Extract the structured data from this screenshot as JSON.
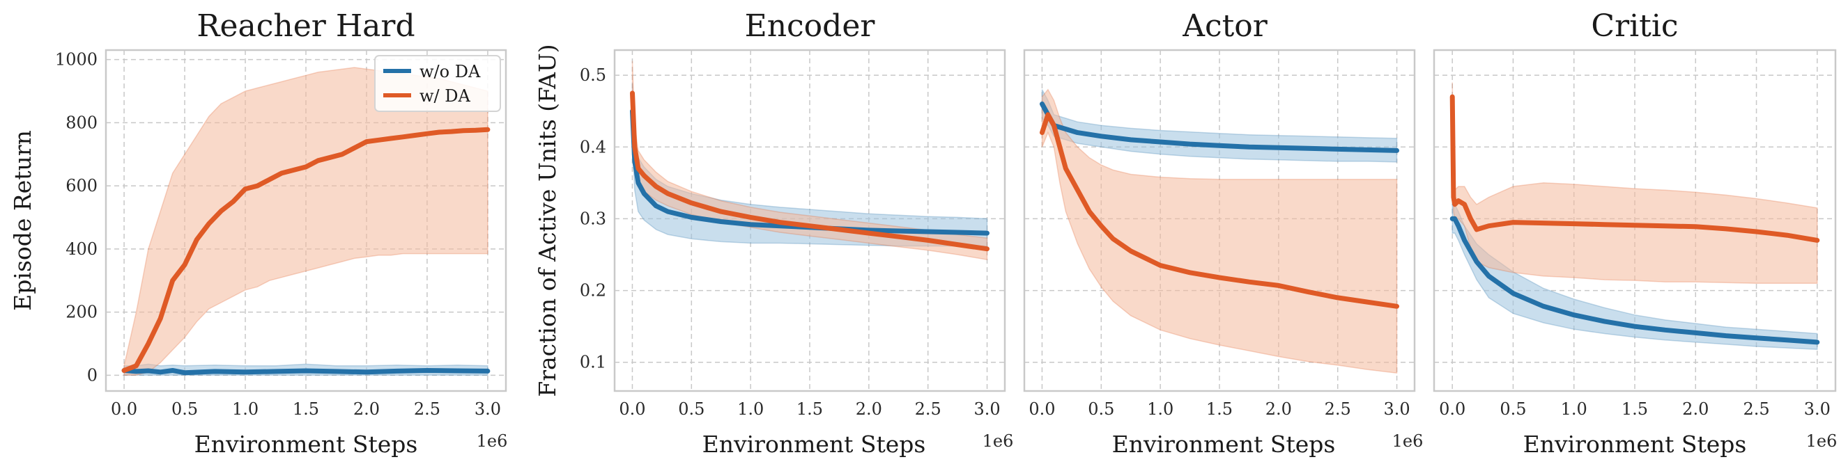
{
  "colors": {
    "without_da": "#2471a8",
    "with_da": "#df5a26",
    "band_without_da": "#9cc3de",
    "band_with_da": "#f4b99c"
  },
  "shared": {
    "xlabel": "Environment Steps",
    "x_scale_label": "1e6"
  },
  "chart_data": [
    {
      "type": "line",
      "title": "Reacher Hard",
      "xlabel": "Environment Steps",
      "ylabel": "Episode Return",
      "xlim": [
        -0.15,
        3.15
      ],
      "ylim": [
        -50,
        1030
      ],
      "xticks": [
        0.0,
        0.5,
        1.0,
        1.5,
        2.0,
        2.5,
        3.0
      ],
      "xtick_labels": [
        "0.0",
        "0.5",
        "1.0",
        "1.5",
        "2.0",
        "2.5",
        "3.0"
      ],
      "yticks": [
        0,
        200,
        400,
        600,
        800,
        1000
      ],
      "ytick_labels": [
        "0",
        "200",
        "400",
        "600",
        "800",
        "1000"
      ],
      "x_scale_label": "1e6",
      "grid": true,
      "legend": {
        "position": "top-right",
        "entries": [
          "w/o DA",
          "w/ DA"
        ]
      },
      "series": [
        {
          "name": "w/o DA",
          "color_key": "without_da",
          "x": [
            0.0,
            0.1,
            0.2,
            0.3,
            0.4,
            0.5,
            0.75,
            1.0,
            1.25,
            1.5,
            1.75,
            2.0,
            2.25,
            2.5,
            2.75,
            3.0
          ],
          "y": [
            15,
            12,
            14,
            10,
            15,
            8,
            12,
            10,
            12,
            14,
            12,
            10,
            13,
            15,
            14,
            13
          ],
          "lower": [
            0,
            0,
            0,
            0,
            0,
            0,
            0,
            0,
            0,
            0,
            0,
            0,
            0,
            0,
            0,
            0
          ],
          "upper": [
            30,
            30,
            35,
            30,
            32,
            30,
            32,
            30,
            30,
            35,
            30,
            30,
            32,
            30,
            32,
            30
          ]
        },
        {
          "name": "w/ DA",
          "color_key": "with_da",
          "x": [
            0.0,
            0.1,
            0.2,
            0.3,
            0.4,
            0.5,
            0.6,
            0.7,
            0.8,
            0.9,
            1.0,
            1.1,
            1.2,
            1.3,
            1.4,
            1.5,
            1.6,
            1.7,
            1.8,
            1.9,
            2.0,
            2.1,
            2.2,
            2.3,
            2.4,
            2.5,
            2.6,
            2.7,
            2.8,
            2.9,
            3.0
          ],
          "y": [
            15,
            30,
            100,
            180,
            300,
            350,
            430,
            480,
            520,
            550,
            590,
            600,
            620,
            640,
            650,
            660,
            680,
            690,
            700,
            720,
            740,
            745,
            750,
            755,
            760,
            765,
            770,
            772,
            775,
            776,
            778
          ],
          "lower": [
            0,
            0,
            10,
            40,
            80,
            120,
            170,
            210,
            230,
            250,
            270,
            280,
            300,
            310,
            320,
            330,
            340,
            350,
            360,
            370,
            375,
            380,
            380,
            385,
            385,
            385,
            385,
            385,
            385,
            385,
            385
          ],
          "upper": [
            30,
            200,
            400,
            520,
            640,
            700,
            760,
            820,
            860,
            880,
            900,
            910,
            920,
            930,
            940,
            950,
            960,
            965,
            970,
            975,
            970,
            965,
            960,
            955,
            950,
            945,
            940,
            930,
            920,
            910,
            900
          ]
        }
      ]
    },
    {
      "type": "line",
      "title": "Encoder",
      "xlabel": "Environment Steps",
      "ylabel": "Fraction of Active Units (FAU)",
      "xlim": [
        -0.15,
        3.15
      ],
      "ylim": [
        0.06,
        0.535
      ],
      "xticks": [
        0.0,
        0.5,
        1.0,
        1.5,
        2.0,
        2.5,
        3.0
      ],
      "xtick_labels": [
        "0.0",
        "0.5",
        "1.0",
        "1.5",
        "2.0",
        "2.5",
        "3.0"
      ],
      "yticks": [
        0.1,
        0.2,
        0.3,
        0.4,
        0.5
      ],
      "ytick_labels": [
        "0.1",
        "0.2",
        "0.3",
        "0.4",
        "0.5"
      ],
      "x_scale_label": "1e6",
      "grid": true,
      "series": [
        {
          "name": "w/o DA",
          "color_key": "without_da",
          "x": [
            0.0,
            0.02,
            0.05,
            0.1,
            0.2,
            0.3,
            0.5,
            0.75,
            1.0,
            1.25,
            1.5,
            1.75,
            2.0,
            2.25,
            2.5,
            2.75,
            3.0
          ],
          "y": [
            0.45,
            0.38,
            0.35,
            0.335,
            0.318,
            0.31,
            0.302,
            0.296,
            0.292,
            0.29,
            0.288,
            0.286,
            0.284,
            0.283,
            0.282,
            0.281,
            0.28
          ],
          "lower": [
            0.41,
            0.34,
            0.31,
            0.298,
            0.285,
            0.278,
            0.272,
            0.268,
            0.266,
            0.266,
            0.265,
            0.264,
            0.263,
            0.262,
            0.262,
            0.262,
            0.262
          ],
          "upper": [
            0.49,
            0.42,
            0.385,
            0.372,
            0.355,
            0.345,
            0.335,
            0.326,
            0.32,
            0.316,
            0.313,
            0.31,
            0.307,
            0.305,
            0.303,
            0.302,
            0.3
          ]
        },
        {
          "name": "w/ DA",
          "color_key": "with_da",
          "x": [
            0.0,
            0.02,
            0.05,
            0.1,
            0.2,
            0.3,
            0.5,
            0.75,
            1.0,
            1.25,
            1.5,
            1.75,
            2.0,
            2.25,
            2.5,
            2.75,
            3.0
          ],
          "y": [
            0.475,
            0.4,
            0.37,
            0.36,
            0.345,
            0.335,
            0.322,
            0.31,
            0.302,
            0.295,
            0.29,
            0.285,
            0.28,
            0.275,
            0.27,
            0.264,
            0.258
          ],
          "lower": [
            0.44,
            0.37,
            0.345,
            0.338,
            0.326,
            0.318,
            0.306,
            0.295,
            0.288,
            0.281,
            0.276,
            0.271,
            0.266,
            0.261,
            0.256,
            0.25,
            0.243
          ],
          "upper": [
            0.52,
            0.43,
            0.395,
            0.382,
            0.365,
            0.352,
            0.338,
            0.325,
            0.316,
            0.309,
            0.304,
            0.299,
            0.294,
            0.289,
            0.284,
            0.278,
            0.273
          ]
        }
      ]
    },
    {
      "type": "line",
      "title": "Actor",
      "xlabel": "Environment Steps",
      "ylabel": "",
      "xlim": [
        -0.15,
        3.15
      ],
      "ylim": [
        0.06,
        0.535
      ],
      "xticks": [
        0.0,
        0.5,
        1.0,
        1.5,
        2.0,
        2.5,
        3.0
      ],
      "xtick_labels": [
        "0.0",
        "0.5",
        "1.0",
        "1.5",
        "2.0",
        "2.5",
        "3.0"
      ],
      "yticks": [
        0.1,
        0.2,
        0.3,
        0.4,
        0.5
      ],
      "ytick_labels": [],
      "x_scale_label": "1e6",
      "grid": true,
      "series": [
        {
          "name": "w/o DA",
          "color_key": "without_da",
          "x": [
            0.0,
            0.05,
            0.1,
            0.2,
            0.3,
            0.5,
            0.75,
            1.0,
            1.25,
            1.5,
            1.75,
            2.0,
            2.25,
            2.5,
            2.75,
            3.0
          ],
          "y": [
            0.46,
            0.445,
            0.43,
            0.425,
            0.42,
            0.415,
            0.41,
            0.407,
            0.404,
            0.402,
            0.4,
            0.399,
            0.398,
            0.397,
            0.396,
            0.395
          ],
          "lower": [
            0.44,
            0.43,
            0.415,
            0.41,
            0.405,
            0.4,
            0.394,
            0.39,
            0.387,
            0.385,
            0.383,
            0.382,
            0.381,
            0.38,
            0.38,
            0.379
          ],
          "upper": [
            0.48,
            0.465,
            0.445,
            0.44,
            0.435,
            0.43,
            0.426,
            0.423,
            0.421,
            0.419,
            0.417,
            0.416,
            0.415,
            0.414,
            0.413,
            0.412
          ]
        },
        {
          "name": "w/ DA",
          "color_key": "with_da",
          "x": [
            0.0,
            0.05,
            0.1,
            0.15,
            0.2,
            0.3,
            0.4,
            0.5,
            0.6,
            0.75,
            1.0,
            1.25,
            1.5,
            1.75,
            2.0,
            2.25,
            2.5,
            2.75,
            3.0
          ],
          "y": [
            0.42,
            0.445,
            0.43,
            0.4,
            0.37,
            0.34,
            0.31,
            0.29,
            0.272,
            0.255,
            0.235,
            0.225,
            0.218,
            0.212,
            0.207,
            0.198,
            0.19,
            0.184,
            0.178
          ],
          "lower": [
            0.4,
            0.42,
            0.4,
            0.35,
            0.31,
            0.265,
            0.23,
            0.205,
            0.185,
            0.165,
            0.145,
            0.133,
            0.124,
            0.116,
            0.108,
            0.101,
            0.096,
            0.09,
            0.085
          ],
          "upper": [
            0.47,
            0.48,
            0.465,
            0.44,
            0.42,
            0.4,
            0.385,
            0.375,
            0.368,
            0.362,
            0.358,
            0.356,
            0.355,
            0.355,
            0.355,
            0.355,
            0.355,
            0.355,
            0.355
          ]
        }
      ]
    },
    {
      "type": "line",
      "title": "Critic",
      "xlabel": "Environment Steps",
      "ylabel": "",
      "xlim": [
        -0.15,
        3.15
      ],
      "ylim": [
        0.06,
        0.535
      ],
      "xticks": [
        0.0,
        0.5,
        1.0,
        1.5,
        2.0,
        2.5,
        3.0
      ],
      "xtick_labels": [
        "0.0",
        "0.5",
        "1.0",
        "1.5",
        "2.0",
        "2.5",
        "3.0"
      ],
      "yticks": [
        0.1,
        0.2,
        0.3,
        0.4,
        0.5
      ],
      "ytick_labels": [],
      "x_scale_label": "1e6",
      "grid": true,
      "series": [
        {
          "name": "w/o DA",
          "color_key": "without_da",
          "x": [
            0.0,
            0.02,
            0.05,
            0.1,
            0.2,
            0.3,
            0.5,
            0.75,
            1.0,
            1.25,
            1.5,
            1.75,
            2.0,
            2.25,
            2.5,
            2.75,
            3.0
          ],
          "y": [
            0.3,
            0.3,
            0.29,
            0.27,
            0.24,
            0.22,
            0.196,
            0.178,
            0.166,
            0.157,
            0.15,
            0.145,
            0.141,
            0.137,
            0.134,
            0.131,
            0.128
          ],
          "lower": [
            0.28,
            0.28,
            0.27,
            0.25,
            0.215,
            0.19,
            0.168,
            0.155,
            0.146,
            0.14,
            0.135,
            0.131,
            0.128,
            0.125,
            0.122,
            0.12,
            0.118
          ],
          "upper": [
            0.32,
            0.32,
            0.31,
            0.29,
            0.265,
            0.25,
            0.226,
            0.203,
            0.188,
            0.176,
            0.166,
            0.159,
            0.154,
            0.149,
            0.146,
            0.143,
            0.14
          ]
        },
        {
          "name": "w/ DA",
          "color_key": "with_da",
          "x": [
            0.0,
            0.01,
            0.02,
            0.05,
            0.1,
            0.15,
            0.2,
            0.3,
            0.5,
            0.75,
            1.0,
            1.25,
            1.5,
            1.75,
            2.0,
            2.25,
            2.5,
            2.75,
            3.0
          ],
          "y": [
            0.47,
            0.33,
            0.32,
            0.325,
            0.32,
            0.3,
            0.285,
            0.29,
            0.295,
            0.294,
            0.293,
            0.292,
            0.291,
            0.29,
            0.289,
            0.286,
            0.282,
            0.277,
            0.27
          ],
          "lower": [
            0.45,
            0.31,
            0.3,
            0.3,
            0.29,
            0.26,
            0.24,
            0.232,
            0.225,
            0.22,
            0.218,
            0.215,
            0.214,
            0.212,
            0.212,
            0.211,
            0.21,
            0.21,
            0.21
          ],
          "upper": [
            0.49,
            0.35,
            0.34,
            0.345,
            0.345,
            0.33,
            0.32,
            0.33,
            0.345,
            0.35,
            0.348,
            0.345,
            0.342,
            0.34,
            0.337,
            0.333,
            0.328,
            0.322,
            0.315
          ]
        }
      ]
    }
  ]
}
